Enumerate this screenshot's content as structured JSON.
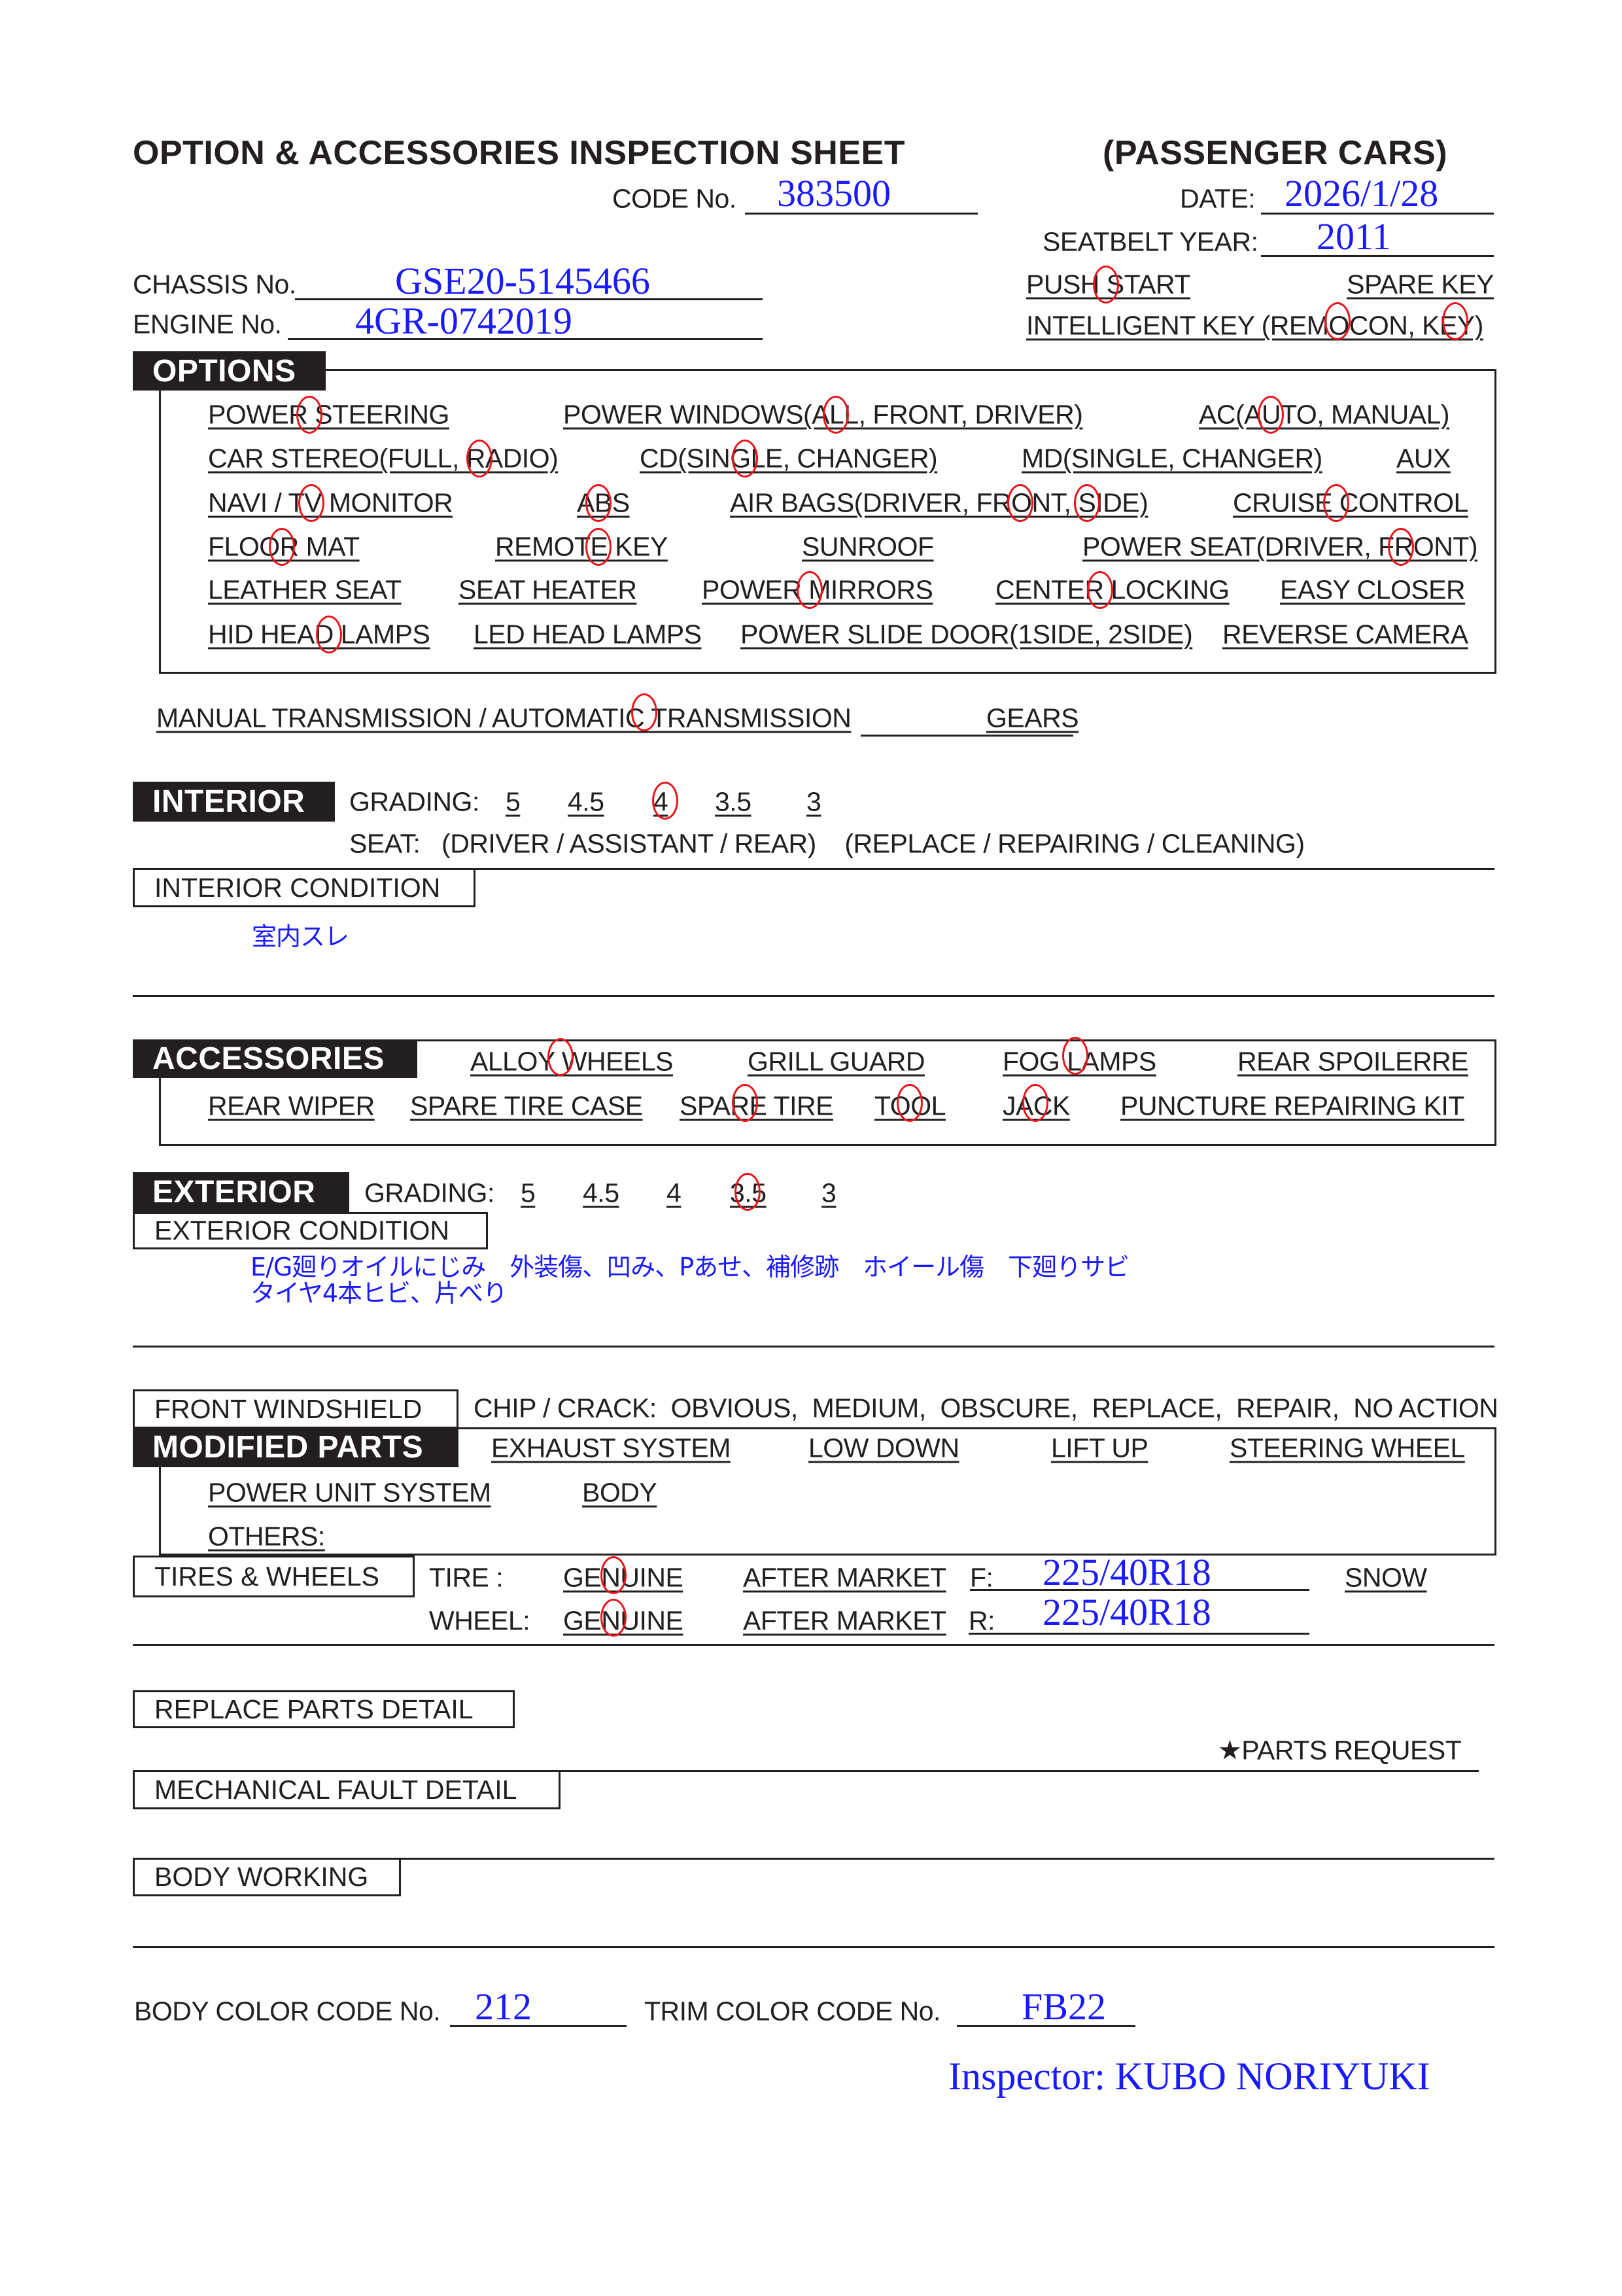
{
  "header": {
    "title": "OPTION & ACCESSORIES INSPECTION SHEET",
    "category": "(PASSENGER CARS)",
    "code_label": "CODE No.",
    "code_value": "383500",
    "date_label": "DATE:",
    "date_value": "2026/1/28",
    "seatbelt_label": "SEATBELT YEAR:",
    "seatbelt_value": "2011",
    "chassis_label": "CHASSIS No.",
    "chassis_value": "GSE20-5145466",
    "engine_label": "ENGINE No.",
    "engine_value": "4GR-0742019",
    "push_start": "PUSH START",
    "spare_key": "SPARE KEY",
    "intelligent_key": "INTELLIGENT KEY (REMOCON, KEY)"
  },
  "options": {
    "label": "OPTIONS",
    "rows": [
      [
        "POWER STEERING",
        "POWER WINDOWS(ALL, FRONT, DRIVER)",
        "AC(AUTO, MANUAL)"
      ],
      [
        "CAR STEREO(FULL, RADIO)",
        "CD(SINGLE, CHANGER)",
        "MD(SINGLE, CHANGER)",
        "AUX"
      ],
      [
        "NAVI / TV MONITOR",
        "ABS",
        "AIR BAGS(DRIVER, FRONT, SIDE)",
        "CRUISE CONTROL"
      ],
      [
        "FLOOR MAT",
        "REMOTE KEY",
        "SUNROOF",
        "POWER SEAT(DRIVER, FRONT)"
      ],
      [
        "LEATHER SEAT",
        "SEAT HEATER",
        "POWER MIRRORS",
        "CENTER LOCKING",
        "EASY CLOSER"
      ],
      [
        "HID HEAD LAMPS",
        "LED HEAD LAMPS",
        "POWER SLIDE DOOR(1SIDE,  2SIDE)",
        "REVERSE CAMERA"
      ]
    ],
    "circled": [
      "PUSH START",
      "REMOCON",
      "KEY",
      "POWER STEERING",
      "ALL",
      "AUTO",
      "RADIO",
      "SINGLE (CD)",
      "TV MONITOR",
      "ABS",
      "FRONT (AIR BAGS)",
      "SIDE",
      "CRUISE CONTROL",
      "FLOOR MAT",
      "REMOTE KEY",
      "FRONT (POWER SEAT)",
      "POWER MIRRORS",
      "CENTER LOCKING",
      "HID HEAD LAMPS"
    ]
  },
  "transmission": {
    "text": "MANUAL TRANSMISSION / AUTOMATIC TRANSMISSION",
    "circled": "AUTOMATIC TRANSMISSION",
    "gears": "GEARS"
  },
  "interior": {
    "label": "INTERIOR",
    "grading_label": "GRADING:",
    "grades": [
      "5",
      "4.5",
      "4",
      "3.5",
      "3"
    ],
    "selected_grade": "4",
    "seat_line": "SEAT:   (DRIVER / ASSISTANT / REAR)    (REPLACE / REPAIRING / CLEANING)",
    "condition_label": "INTERIOR CONDITION",
    "condition_text": "室内スレ"
  },
  "accessories": {
    "label": "ACCESSORIES",
    "rows": [
      [
        "ALLOY WHEELS",
        "GRILL GUARD",
        "FOG LAMPS",
        "REAR SPOILERRE"
      ],
      [
        "REAR WIPER",
        "SPARE TIRE CASE",
        "SPARE TIRE",
        "TOOL",
        "JACK",
        "PUNCTURE REPAIRING KIT"
      ]
    ],
    "circled": [
      "ALLOY WHEELS",
      "FOG LAMPS",
      "SPARE TIRE",
      "TOOL",
      "JACK"
    ]
  },
  "exterior": {
    "label": "EXTERIOR",
    "grading_label": "GRADING:",
    "grades": [
      "5",
      "4.5",
      "4",
      "3.5",
      "3"
    ],
    "selected_grade": "3.5",
    "condition_label": "EXTERIOR CONDITION",
    "condition_lines": [
      "E/G廻りオイルにじみ　外装傷、凹み、Pあせ、補修跡　ホイール傷　下廻りサビ",
      "タイヤ4本ヒビ、片べり"
    ]
  },
  "windshield": {
    "label": "FRONT WINDSHIELD",
    "text": "CHIP / CRACK:  OBVIOUS,  MEDIUM,  OBSCURE,  REPLACE,  REPAIR,  NO ACTION"
  },
  "modified_parts": {
    "label": "MODIFIED PARTS",
    "row1": [
      "EXHAUST SYSTEM",
      "LOW DOWN",
      "LIFT UP",
      "STEERING WHEEL"
    ],
    "row2": [
      "POWER UNIT SYSTEM",
      "BODY"
    ],
    "others": "OTHERS:"
  },
  "tires_wheels": {
    "label": "TIRES & WHEELS",
    "tire_label": "TIRE :",
    "wheel_label": "WHEEL:",
    "genuine": "GENUINE",
    "after_market": "AFTER MARKET",
    "front_label": "F:",
    "front_value": "225/40R18",
    "rear_label": "R:",
    "rear_value": "225/40R18",
    "snow": "SNOW",
    "tire_selected": "GENUINE",
    "wheel_selected": "GENUINE"
  },
  "details": {
    "replace_parts": "REPLACE PARTS DETAIL",
    "parts_request": "★PARTS REQUEST",
    "mechanical_fault": "MECHANICAL FAULT DETAIL",
    "body_working": "BODY WORKING"
  },
  "footer": {
    "body_color_label": "BODY COLOR CODE No.",
    "body_color_value": "212",
    "trim_color_label": "TRIM COLOR CODE No.",
    "trim_color_value": "FB22",
    "inspector": "Inspector: KUBO NORIYUKI"
  }
}
